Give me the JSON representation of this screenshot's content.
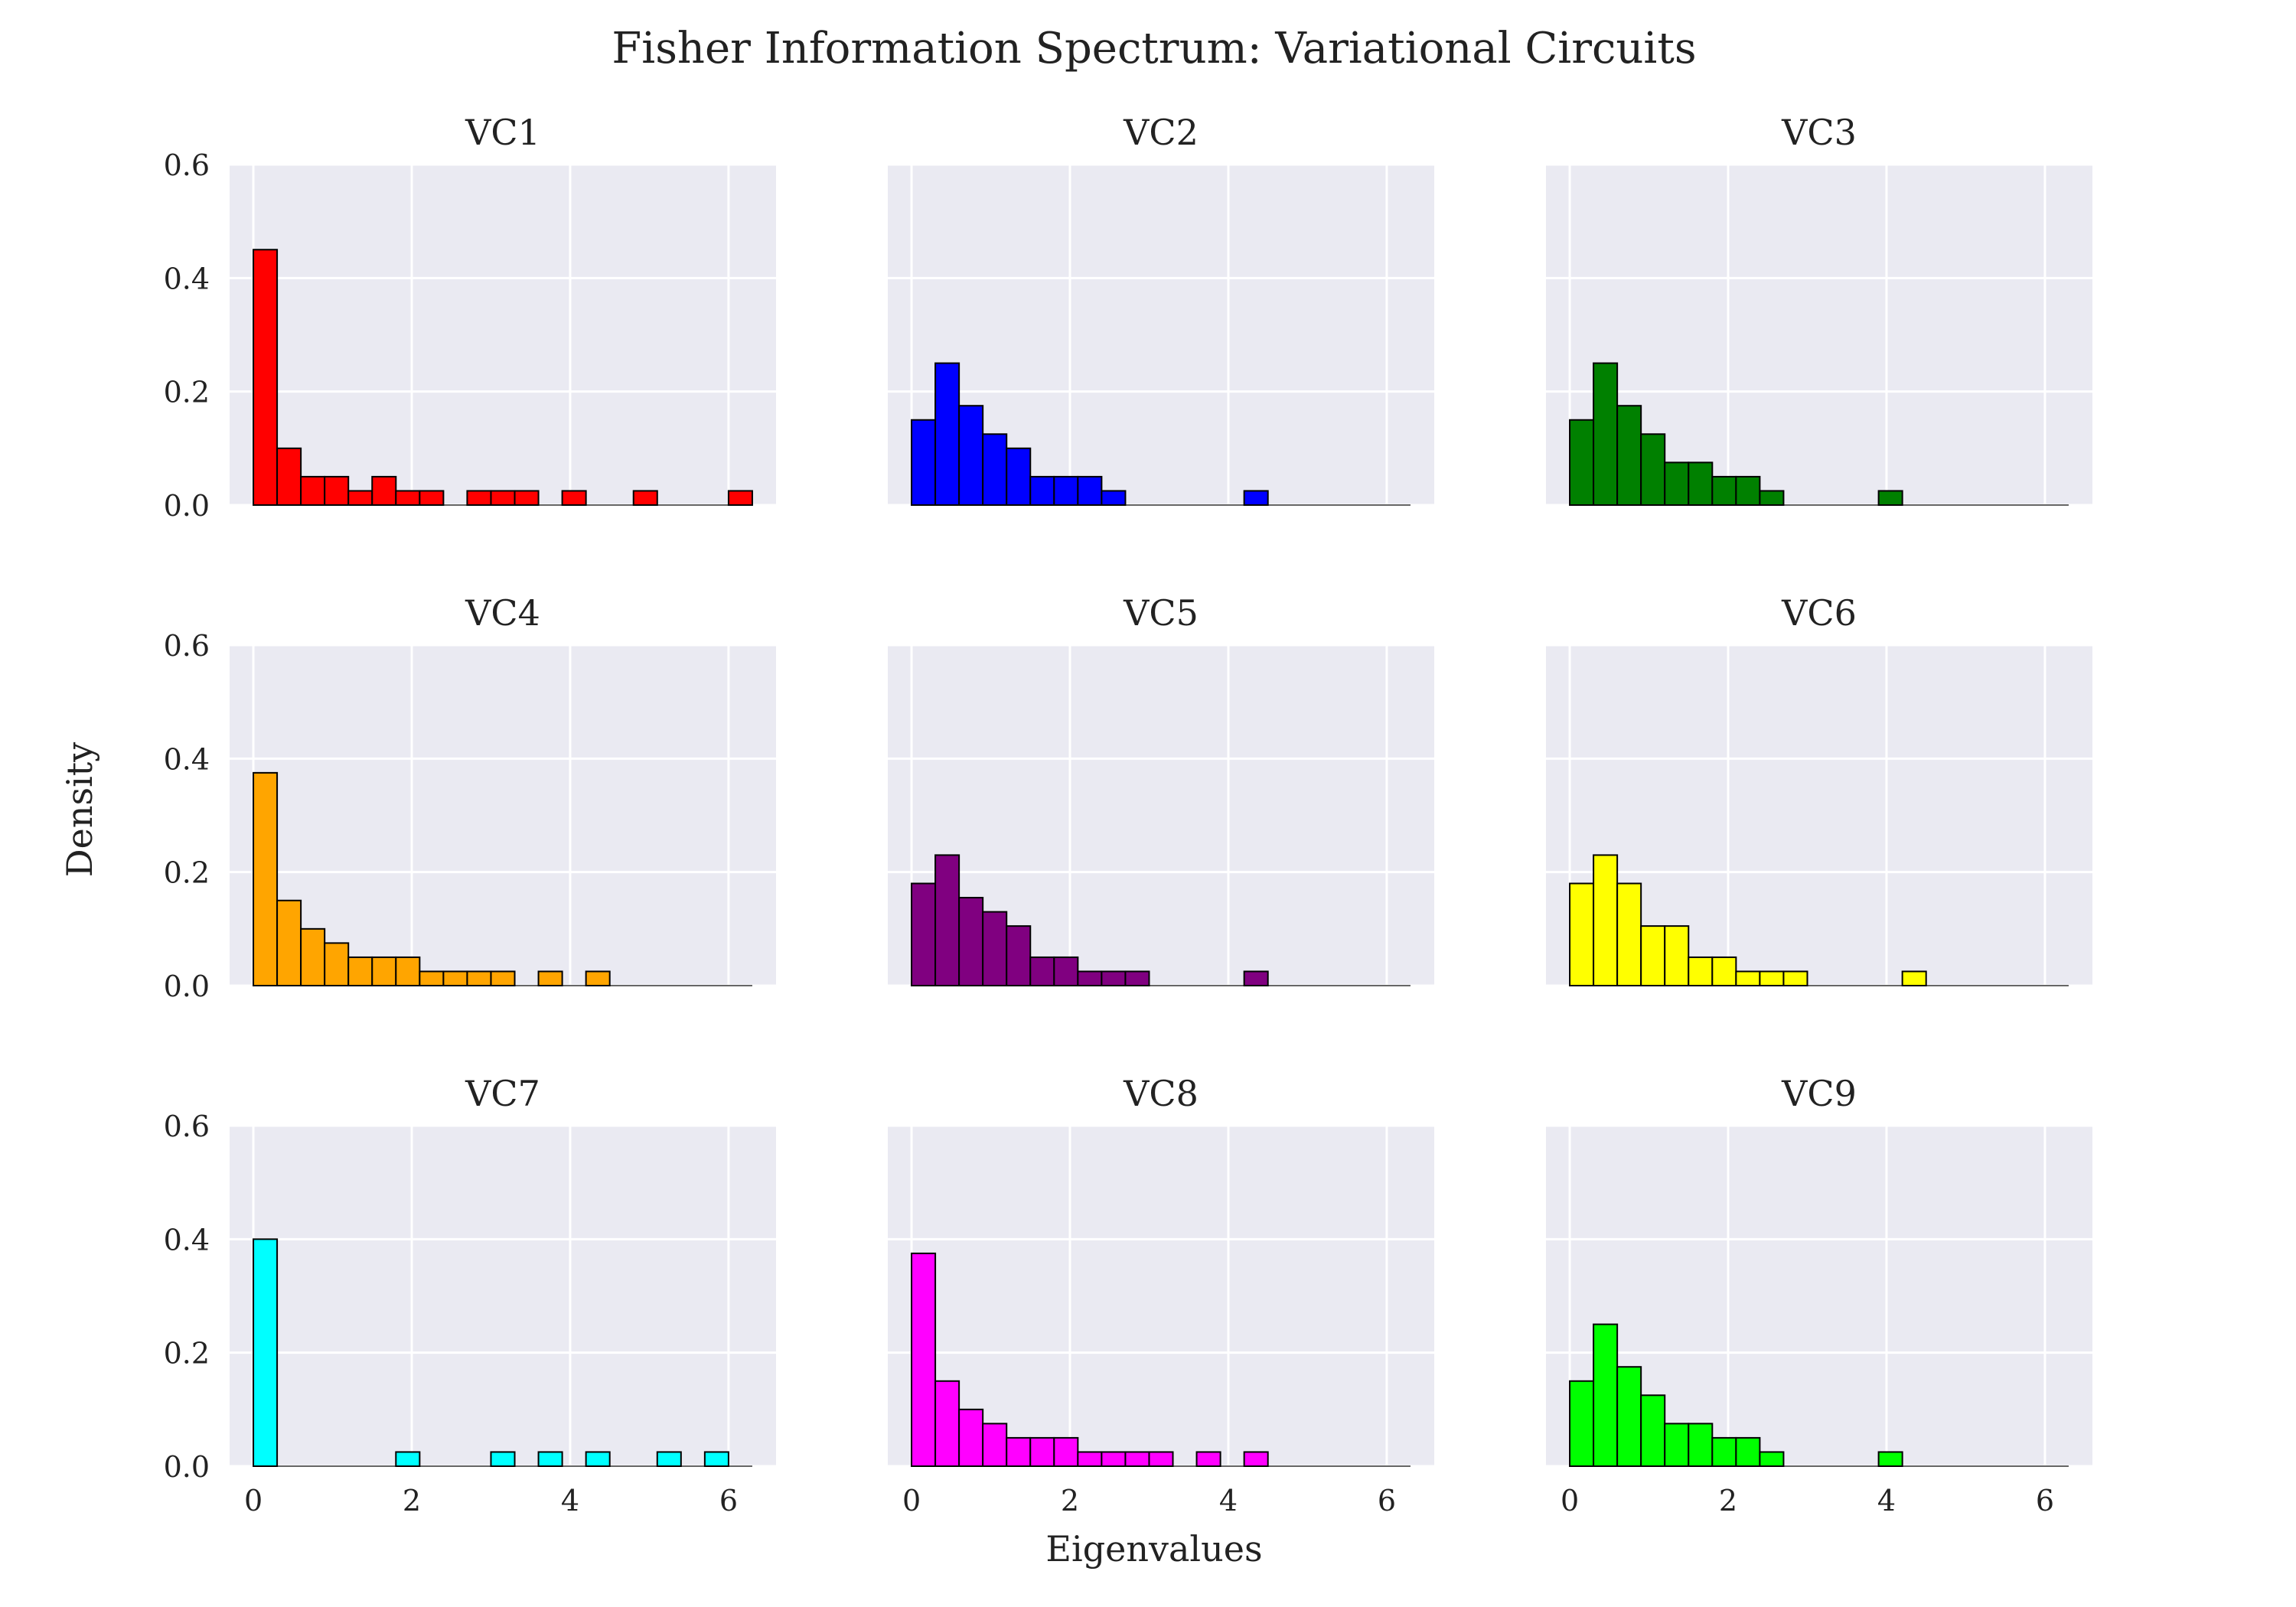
{
  "figure": {
    "title": "Fisher Information Spectrum: Variational Circuits",
    "xlabel": "Eigenvalues",
    "ylabel": "Density",
    "background": "#ffffff",
    "plot_bg": "#eaeaf2",
    "grid_color": "#ffffff",
    "edge_color": "#000000"
  },
  "chart_data": [
    {
      "type": "bar",
      "title": "VC1",
      "color": "#ff0000",
      "bin_width": 0.3,
      "bin_starts": [
        0,
        0.3,
        0.6,
        0.9,
        1.2,
        1.5,
        1.8,
        2.1,
        2.7,
        3.0,
        3.3,
        3.9,
        4.8,
        6.0
      ],
      "values": [
        0.45,
        0.1,
        0.05,
        0.05,
        0.025,
        0.05,
        0.025,
        0.025,
        0.025,
        0.025,
        0.025,
        0.025,
        0.025,
        0.025
      ],
      "xlim": [
        -0.3,
        6.6
      ],
      "ylim": [
        0,
        0.6
      ],
      "xticks": [
        0,
        2,
        4,
        6
      ],
      "yticks": [
        0.0,
        0.2,
        0.4,
        0.6
      ],
      "grid": true,
      "show_xticks": false,
      "show_yticks": true
    },
    {
      "type": "bar",
      "title": "VC2",
      "color": "#0000ff",
      "bin_width": 0.3,
      "bin_starts": [
        0,
        0.3,
        0.6,
        0.9,
        1.2,
        1.5,
        1.8,
        2.1,
        2.4,
        4.2
      ],
      "values": [
        0.15,
        0.25,
        0.175,
        0.125,
        0.1,
        0.05,
        0.05,
        0.05,
        0.025,
        0.025
      ],
      "xlim": [
        -0.3,
        6.6
      ],
      "ylim": [
        0,
        0.6
      ],
      "xticks": [
        0,
        2,
        4,
        6
      ],
      "yticks": [
        0.0,
        0.2,
        0.4,
        0.6
      ],
      "grid": true,
      "show_xticks": false,
      "show_yticks": false
    },
    {
      "type": "bar",
      "title": "VC3",
      "color": "#008000",
      "bin_width": 0.3,
      "bin_starts": [
        0,
        0.3,
        0.6,
        0.9,
        1.2,
        1.5,
        1.8,
        2.1,
        2.4,
        3.9
      ],
      "values": [
        0.15,
        0.25,
        0.175,
        0.125,
        0.075,
        0.075,
        0.05,
        0.05,
        0.025,
        0.025
      ],
      "xlim": [
        -0.3,
        6.6
      ],
      "ylim": [
        0,
        0.6
      ],
      "xticks": [
        0,
        2,
        4,
        6
      ],
      "yticks": [
        0.0,
        0.2,
        0.4,
        0.6
      ],
      "grid": true,
      "show_xticks": false,
      "show_yticks": false
    },
    {
      "type": "bar",
      "title": "VC4",
      "color": "#ffa500",
      "bin_width": 0.3,
      "bin_starts": [
        0,
        0.3,
        0.6,
        0.9,
        1.2,
        1.5,
        1.8,
        2.1,
        2.4,
        2.7,
        3.0,
        3.6,
        4.2
      ],
      "values": [
        0.375,
        0.15,
        0.1,
        0.075,
        0.05,
        0.05,
        0.05,
        0.025,
        0.025,
        0.025,
        0.025,
        0.025,
        0.025
      ],
      "xlim": [
        -0.3,
        6.6
      ],
      "ylim": [
        0,
        0.6
      ],
      "xticks": [
        0,
        2,
        4,
        6
      ],
      "yticks": [
        0.0,
        0.2,
        0.4,
        0.6
      ],
      "grid": true,
      "show_xticks": false,
      "show_yticks": true
    },
    {
      "type": "bar",
      "title": "VC5",
      "color": "#800080",
      "bin_width": 0.3,
      "bin_starts": [
        0,
        0.3,
        0.6,
        0.9,
        1.2,
        1.5,
        1.8,
        2.1,
        2.4,
        2.7,
        4.2
      ],
      "values": [
        0.18,
        0.23,
        0.155,
        0.13,
        0.105,
        0.05,
        0.05,
        0.025,
        0.025,
        0.025,
        0.025
      ],
      "xlim": [
        -0.3,
        6.6
      ],
      "ylim": [
        0,
        0.6
      ],
      "xticks": [
        0,
        2,
        4,
        6
      ],
      "yticks": [
        0.0,
        0.2,
        0.4,
        0.6
      ],
      "grid": true,
      "show_xticks": false,
      "show_yticks": false
    },
    {
      "type": "bar",
      "title": "VC6",
      "color": "#ffff00",
      "bin_width": 0.3,
      "bin_starts": [
        0,
        0.3,
        0.6,
        0.9,
        1.2,
        1.5,
        1.8,
        2.1,
        2.4,
        2.7,
        4.2
      ],
      "values": [
        0.18,
        0.23,
        0.18,
        0.105,
        0.105,
        0.05,
        0.05,
        0.025,
        0.025,
        0.025,
        0.025
      ],
      "xlim": [
        -0.3,
        6.6
      ],
      "ylim": [
        0,
        0.6
      ],
      "xticks": [
        0,
        2,
        4,
        6
      ],
      "yticks": [
        0.0,
        0.2,
        0.4,
        0.6
      ],
      "grid": true,
      "show_xticks": false,
      "show_yticks": false
    },
    {
      "type": "bar",
      "title": "VC7",
      "color": "#00ffff",
      "bin_width": 0.3,
      "bin_starts": [
        0,
        1.8,
        3.0,
        3.6,
        4.2,
        5.1,
        5.7
      ],
      "values": [
        0.4,
        0.025,
        0.025,
        0.025,
        0.025,
        0.025,
        0.025
      ],
      "xlim": [
        -0.3,
        6.6
      ],
      "ylim": [
        0,
        0.6
      ],
      "xticks": [
        0,
        2,
        4,
        6
      ],
      "yticks": [
        0.0,
        0.2,
        0.4,
        0.6
      ],
      "grid": true,
      "show_xticks": true,
      "show_yticks": true
    },
    {
      "type": "bar",
      "title": "VC8",
      "color": "#ff00ff",
      "bin_width": 0.3,
      "bin_starts": [
        0,
        0.3,
        0.6,
        0.9,
        1.2,
        1.5,
        1.8,
        2.1,
        2.4,
        2.7,
        3.0,
        3.6,
        4.2
      ],
      "values": [
        0.375,
        0.15,
        0.1,
        0.075,
        0.05,
        0.05,
        0.05,
        0.025,
        0.025,
        0.025,
        0.025,
        0.025,
        0.025
      ],
      "xlim": [
        -0.3,
        6.6
      ],
      "ylim": [
        0,
        0.6
      ],
      "xticks": [
        0,
        2,
        4,
        6
      ],
      "yticks": [
        0.0,
        0.2,
        0.4,
        0.6
      ],
      "grid": true,
      "show_xticks": true,
      "show_yticks": false
    },
    {
      "type": "bar",
      "title": "VC9",
      "color": "#00ff00",
      "bin_width": 0.3,
      "bin_starts": [
        0,
        0.3,
        0.6,
        0.9,
        1.2,
        1.5,
        1.8,
        2.1,
        2.4,
        3.9
      ],
      "values": [
        0.15,
        0.25,
        0.175,
        0.125,
        0.075,
        0.075,
        0.05,
        0.05,
        0.025,
        0.025
      ],
      "xlim": [
        -0.3,
        6.6
      ],
      "ylim": [
        0,
        0.6
      ],
      "xticks": [
        0,
        2,
        4,
        6
      ],
      "yticks": [
        0.0,
        0.2,
        0.4,
        0.6
      ],
      "grid": true,
      "show_xticks": true,
      "show_yticks": false
    }
  ]
}
